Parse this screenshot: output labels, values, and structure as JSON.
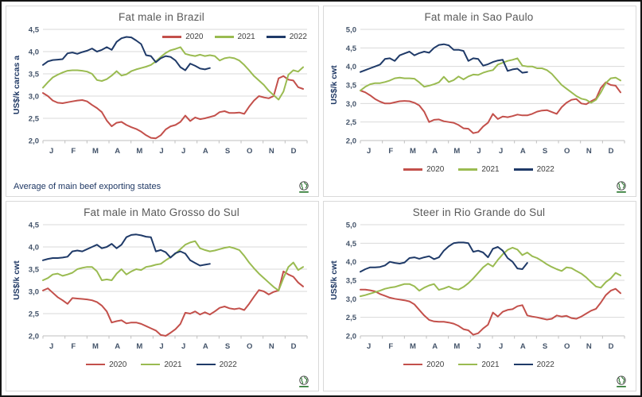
{
  "page": {
    "footnote": "Average of main beef exporting states",
    "logo_name": "globe-logo",
    "accent_colors": {
      "red_2020": "#c3504b",
      "green_2021": "#9abb51",
      "navy_2022": "#1f3a68"
    }
  },
  "chart_data": [
    {
      "type": "line",
      "title": "Fat male in Brazil",
      "ylabel": "US$/k carcas a",
      "ylim": [
        2.0,
        4.5
      ],
      "yticks": {
        "values": [
          2.0,
          2.5,
          3.0,
          3.5,
          4.0,
          4.5
        ],
        "labels": [
          "2,0",
          "2,5",
          "3,0",
          "3,5",
          "4,0",
          "4,5"
        ]
      },
      "months": [
        "J",
        "F",
        "M",
        "A",
        "M",
        "J",
        "J",
        "A",
        "S",
        "O",
        "N",
        "D"
      ],
      "grid": true,
      "legend_position": "top-right",
      "footnote": "Average of main beef exporting states",
      "series": [
        {
          "name": "2020",
          "color": "#c3504b",
          "values": [
            3.07,
            3.0,
            2.9,
            2.85,
            2.84,
            2.86,
            2.88,
            2.9,
            2.91,
            2.88,
            2.8,
            2.73,
            2.64,
            2.45,
            2.32,
            2.4,
            2.42,
            2.35,
            2.3,
            2.26,
            2.2,
            2.12,
            2.06,
            2.05,
            2.12,
            2.25,
            2.32,
            2.35,
            2.42,
            2.56,
            2.44,
            2.52,
            2.48,
            2.5,
            2.53,
            2.56,
            2.64,
            2.66,
            2.62,
            2.62,
            2.63,
            2.6,
            2.76,
            2.9,
            3.0,
            2.97,
            2.95,
            3.0,
            3.4,
            3.45,
            3.37,
            3.35,
            3.2,
            3.16
          ]
        },
        {
          "name": "2021",
          "color": "#9abb51",
          "values": [
            3.19,
            3.31,
            3.42,
            3.48,
            3.53,
            3.57,
            3.58,
            3.58,
            3.57,
            3.55,
            3.5,
            3.36,
            3.34,
            3.38,
            3.46,
            3.56,
            3.46,
            3.49,
            3.56,
            3.6,
            3.63,
            3.66,
            3.7,
            3.78,
            3.88,
            3.97,
            4.03,
            4.06,
            4.1,
            3.95,
            3.92,
            3.9,
            3.93,
            3.9,
            3.92,
            3.9,
            3.8,
            3.85,
            3.87,
            3.85,
            3.8,
            3.7,
            3.58,
            3.45,
            3.35,
            3.25,
            3.12,
            3.02,
            2.92,
            3.1,
            3.48,
            3.58,
            3.55,
            3.65
          ]
        },
        {
          "name": "2022",
          "color": "#1f3a68",
          "values": [
            3.7,
            3.78,
            3.81,
            3.82,
            3.83,
            3.96,
            3.98,
            3.95,
            3.99,
            4.02,
            4.07,
            4.0,
            4.04,
            4.1,
            4.04,
            4.22,
            4.3,
            4.33,
            4.32,
            4.25,
            4.17,
            3.92,
            3.9,
            3.76,
            3.85,
            3.9,
            3.88,
            3.8,
            3.65,
            3.58,
            3.73,
            3.68,
            3.62,
            3.6,
            3.63
          ]
        }
      ]
    },
    {
      "type": "line",
      "title": "Fat male in Sao Paulo",
      "ylabel": "US$/k cwt",
      "ylim": [
        2.0,
        5.0
      ],
      "yticks": {
        "values": [
          2.0,
          2.5,
          3.0,
          3.5,
          4.0,
          4.5,
          5.0
        ],
        "labels": [
          "2,0",
          "2,5",
          "3,0",
          "3,5",
          "4,0",
          "4,5",
          "5,0"
        ]
      },
      "months": [
        "J",
        "F",
        "M",
        "A",
        "M",
        "J",
        "J",
        "A",
        "S",
        "O",
        "N",
        "D"
      ],
      "grid": true,
      "legend_position": "bottom",
      "footnote": "",
      "series": [
        {
          "name": "2020",
          "color": "#c3504b",
          "values": [
            3.35,
            3.3,
            3.22,
            3.12,
            3.05,
            3.0,
            3.0,
            3.03,
            3.06,
            3.07,
            3.06,
            3.02,
            2.95,
            2.78,
            2.5,
            2.56,
            2.57,
            2.52,
            2.5,
            2.48,
            2.42,
            2.33,
            2.32,
            2.2,
            2.23,
            2.38,
            2.48,
            2.72,
            2.58,
            2.65,
            2.63,
            2.66,
            2.7,
            2.68,
            2.68,
            2.72,
            2.78,
            2.81,
            2.82,
            2.77,
            2.72,
            2.9,
            3.02,
            3.1,
            3.12,
            3.0,
            2.98,
            3.06,
            3.13,
            3.42,
            3.57,
            3.5,
            3.48,
            3.3
          ]
        },
        {
          "name": "2021",
          "color": "#9abb51",
          "values": [
            3.35,
            3.45,
            3.52,
            3.55,
            3.55,
            3.58,
            3.62,
            3.68,
            3.7,
            3.68,
            3.68,
            3.67,
            3.57,
            3.45,
            3.48,
            3.52,
            3.57,
            3.72,
            3.58,
            3.63,
            3.73,
            3.65,
            3.73,
            3.78,
            3.77,
            3.83,
            3.87,
            3.9,
            4.05,
            4.1,
            4.15,
            4.18,
            4.22,
            4.02,
            4.0,
            4.0,
            3.95,
            3.95,
            3.9,
            3.8,
            3.65,
            3.5,
            3.4,
            3.3,
            3.2,
            3.13,
            3.1,
            3.02,
            3.1,
            3.3,
            3.55,
            3.68,
            3.7,
            3.62
          ]
        },
        {
          "name": "2022",
          "color": "#1f3a68",
          "values": [
            3.85,
            3.9,
            3.95,
            4.0,
            4.05,
            4.2,
            4.22,
            4.15,
            4.3,
            4.35,
            4.4,
            4.3,
            4.36,
            4.4,
            4.37,
            4.5,
            4.58,
            4.6,
            4.57,
            4.45,
            4.45,
            4.42,
            4.15,
            4.22,
            4.2,
            4.02,
            4.06,
            4.12,
            4.16,
            4.18,
            3.88,
            3.92,
            3.94,
            3.83,
            3.85
          ]
        }
      ]
    },
    {
      "type": "line",
      "title": "Fat male in Mato Grosso do Sul",
      "ylabel": "US$/k cwt",
      "ylim": [
        2.0,
        4.5
      ],
      "yticks": {
        "values": [
          2.0,
          2.5,
          3.0,
          3.5,
          4.0,
          4.5
        ],
        "labels": [
          "2,0",
          "2,5",
          "3,0",
          "3,5",
          "4,0",
          "4,5"
        ]
      },
      "months": [
        "J",
        "F",
        "M",
        "A",
        "M",
        "J",
        "J",
        "A",
        "S",
        "O",
        "N",
        "D"
      ],
      "grid": true,
      "legend_position": "bottom",
      "footnote": "",
      "series": [
        {
          "name": "2020",
          "color": "#c3504b",
          "values": [
            3.02,
            3.07,
            2.97,
            2.87,
            2.8,
            2.72,
            2.85,
            2.84,
            2.83,
            2.82,
            2.8,
            2.76,
            2.68,
            2.55,
            2.3,
            2.33,
            2.35,
            2.28,
            2.3,
            2.3,
            2.27,
            2.22,
            2.17,
            2.12,
            2.02,
            2.0,
            2.07,
            2.15,
            2.27,
            2.52,
            2.5,
            2.55,
            2.48,
            2.53,
            2.48,
            2.55,
            2.63,
            2.66,
            2.62,
            2.6,
            2.62,
            2.58,
            2.72,
            2.88,
            3.03,
            3.0,
            2.93,
            2.99,
            3.02,
            3.45,
            3.38,
            3.33,
            3.2,
            3.11
          ]
        },
        {
          "name": "2021",
          "color": "#9abb51",
          "values": [
            3.25,
            3.3,
            3.38,
            3.4,
            3.35,
            3.38,
            3.42,
            3.5,
            3.53,
            3.55,
            3.55,
            3.45,
            3.25,
            3.27,
            3.25,
            3.4,
            3.5,
            3.38,
            3.45,
            3.5,
            3.48,
            3.55,
            3.57,
            3.6,
            3.62,
            3.7,
            3.77,
            3.85,
            3.95,
            4.05,
            4.1,
            4.13,
            3.97,
            3.93,
            3.9,
            3.92,
            3.95,
            3.98,
            4.0,
            3.97,
            3.93,
            3.8,
            3.65,
            3.52,
            3.4,
            3.3,
            3.2,
            3.1,
            3.02,
            3.3,
            3.55,
            3.65,
            3.48,
            3.55
          ]
        },
        {
          "name": "2022",
          "color": "#1f3a68",
          "values": [
            3.7,
            3.73,
            3.75,
            3.75,
            3.76,
            3.78,
            3.9,
            3.92,
            3.9,
            3.95,
            4.0,
            4.05,
            3.97,
            4.0,
            4.07,
            3.97,
            4.05,
            4.22,
            4.27,
            4.28,
            4.26,
            4.23,
            4.22,
            3.9,
            3.93,
            3.88,
            3.76,
            3.86,
            3.9,
            3.85,
            3.7,
            3.64,
            3.58,
            3.6,
            3.62
          ]
        }
      ]
    },
    {
      "type": "line",
      "title": "Steer in Rio Grande do Sul",
      "ylabel": "US$/k cwt",
      "ylim": [
        2.0,
        5.0
      ],
      "yticks": {
        "values": [
          2.0,
          2.5,
          3.0,
          3.5,
          4.0,
          4.5,
          5.0
        ],
        "labels": [
          "2,0",
          "2,5",
          "3,0",
          "3,5",
          "4,0",
          "4,5",
          "5,0"
        ]
      },
      "months": [
        "J",
        "F",
        "M",
        "A",
        "M",
        "J",
        "J",
        "A",
        "S",
        "O",
        "N",
        "D"
      ],
      "grid": true,
      "legend_position": "bottom",
      "footnote": "",
      "series": [
        {
          "name": "2020",
          "color": "#c3504b",
          "values": [
            3.25,
            3.25,
            3.23,
            3.2,
            3.13,
            3.08,
            3.03,
            3.0,
            2.98,
            2.96,
            2.93,
            2.85,
            2.7,
            2.55,
            2.43,
            2.39,
            2.38,
            2.38,
            2.36,
            2.33,
            2.27,
            2.18,
            2.15,
            2.03,
            2.07,
            2.2,
            2.3,
            2.63,
            2.52,
            2.65,
            2.7,
            2.72,
            2.8,
            2.83,
            2.55,
            2.52,
            2.5,
            2.47,
            2.44,
            2.46,
            2.55,
            2.52,
            2.54,
            2.48,
            2.46,
            2.52,
            2.6,
            2.68,
            2.73,
            2.9,
            3.1,
            3.22,
            3.27,
            3.15
          ]
        },
        {
          "name": "2021",
          "color": "#9abb51",
          "values": [
            3.07,
            3.1,
            3.14,
            3.18,
            3.22,
            3.27,
            3.3,
            3.32,
            3.36,
            3.4,
            3.4,
            3.34,
            3.22,
            3.3,
            3.36,
            3.4,
            3.24,
            3.28,
            3.33,
            3.27,
            3.25,
            3.32,
            3.42,
            3.55,
            3.7,
            3.85,
            3.95,
            3.87,
            4.05,
            4.2,
            4.32,
            4.38,
            4.33,
            4.18,
            4.25,
            4.15,
            4.1,
            4.02,
            3.93,
            3.86,
            3.8,
            3.75,
            3.85,
            3.83,
            3.75,
            3.68,
            3.58,
            3.45,
            3.33,
            3.3,
            3.45,
            3.55,
            3.7,
            3.63
          ]
        },
        {
          "name": "2022",
          "color": "#1f3a68",
          "values": [
            3.73,
            3.8,
            3.85,
            3.85,
            3.86,
            3.9,
            4.0,
            3.97,
            3.95,
            3.98,
            4.1,
            4.12,
            4.08,
            4.12,
            4.15,
            4.07,
            4.12,
            4.3,
            4.42,
            4.5,
            4.52,
            4.52,
            4.5,
            4.27,
            4.3,
            4.25,
            4.12,
            4.35,
            4.4,
            4.3,
            4.1,
            4.0,
            3.82,
            3.8,
            3.97
          ]
        }
      ]
    }
  ]
}
